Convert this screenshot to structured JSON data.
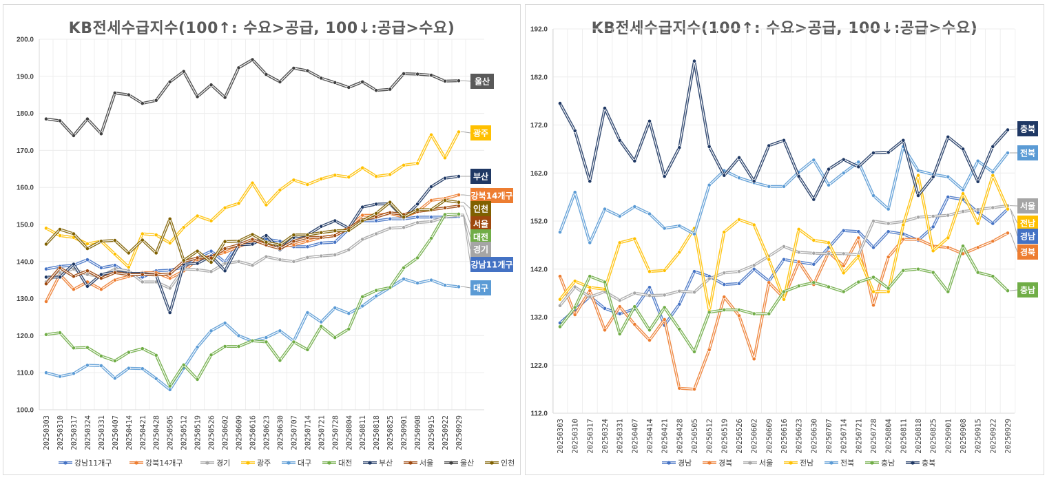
{
  "chart_data": [
    {
      "type": "line",
      "title": "KB전세수급지수(100↑: 수요>공급, 100↓:공급>수요)",
      "xlabel": "",
      "ylabel": "",
      "ylim": [
        100,
        200
      ],
      "yticks": [
        "100.0",
        "110.0",
        "120.0",
        "130.0",
        "140.0",
        "150.0",
        "160.0",
        "170.0",
        "180.0",
        "190.0",
        "200.0"
      ],
      "grid": true,
      "legend": "bottom",
      "x": [
        "20250303",
        "20250310",
        "20250317",
        "20250324",
        "20250331",
        "20250407",
        "20250414",
        "20250421",
        "20250428",
        "20250505",
        "20250512",
        "20250519",
        "20250526",
        "20250602",
        "20250609",
        "20250616",
        "20250623",
        "20250630",
        "20250707",
        "20250714",
        "20250721",
        "20250728",
        "20250804",
        "20250811",
        "20250818",
        "20250825",
        "20250901",
        "20250908",
        "20250915",
        "20250922",
        "20250929"
      ],
      "series": [
        {
          "name": "강남11개구",
          "color": "#4472C4",
          "values": [
            138,
            138.7,
            139,
            140.5,
            138.3,
            139,
            136.5,
            135.8,
            137.5,
            137.7,
            138.5,
            141,
            142.8,
            139.8,
            145,
            145,
            146,
            145.5,
            144,
            144,
            145,
            145.2,
            148.8,
            151,
            151,
            151.5,
            151.5,
            152,
            152,
            152,
            152.2
          ]
        },
        {
          "name": "강북14개구",
          "color": "#ED7D31",
          "values": [
            129.2,
            136.5,
            132.5,
            134.5,
            132.5,
            135,
            136,
            137,
            137,
            135.5,
            137.5,
            140.5,
            141.5,
            142.5,
            144,
            145.5,
            145,
            144,
            144.5,
            145.5,
            146.5,
            147,
            149.2,
            152.5,
            152.5,
            153,
            152,
            153.5,
            156.5,
            157,
            158
          ]
        },
        {
          "name": "경기",
          "color": "#A5A5A5",
          "values": [
            134.5,
            137,
            138,
            136.5,
            136,
            138,
            137.5,
            134.5,
            134.5,
            132.8,
            138,
            137.8,
            137.3,
            139.5,
            140,
            139,
            141.3,
            140.5,
            140,
            141.1,
            141.5,
            141.8,
            143.2,
            146,
            147.5,
            149,
            149.2,
            150.5,
            150.8,
            152,
            152.5
          ]
        },
        {
          "name": "광주",
          "color": "#FFC000",
          "values": [
            149,
            147,
            146.5,
            144.8,
            145.5,
            142,
            138.5,
            147.5,
            147.2,
            145,
            149.2,
            152.3,
            151,
            154.5,
            155.7,
            161.2,
            155.3,
            159.3,
            162,
            160.8,
            162.3,
            163.3,
            162.8,
            165.3,
            163,
            163.5,
            166,
            166.5,
            174.2,
            168,
            175
          ]
        },
        {
          "name": "대구",
          "color": "#5B9BD5",
          "values": [
            110,
            109,
            109.8,
            112,
            111.9,
            108.5,
            111.2,
            111.1,
            108.4,
            105.4,
            111.2,
            116.9,
            121.3,
            123.4,
            120,
            118.5,
            119.5,
            121.3,
            118.5,
            126.2,
            123.7,
            127.5,
            126,
            128,
            130.7,
            133,
            135.3,
            134.2,
            135,
            133.6,
            133.2
          ]
        },
        {
          "name": "대전",
          "color": "#70AD47",
          "values": [
            120.3,
            120.8,
            116.7,
            116.8,
            114.5,
            113.2,
            115.5,
            116.5,
            114.7,
            106.4,
            112.1,
            108.2,
            114.8,
            117.1,
            117.1,
            118.6,
            118.3,
            113.3,
            118.3,
            116.2,
            122.5,
            119.5,
            121.8,
            130.5,
            132.2,
            133,
            138.3,
            141,
            146.3,
            152.7,
            152.8
          ]
        },
        {
          "name": "부산",
          "color": "#1F3864",
          "values": [
            135.8,
            135.8,
            139.3,
            133.3,
            136.5,
            137.2,
            136.8,
            136.8,
            136.4,
            126.2,
            139.3,
            139.5,
            141.5,
            137.5,
            144.5,
            144.7,
            147,
            143.2,
            146.5,
            147.2,
            149.5,
            151,
            149,
            154.7,
            155.5,
            155.6,
            151.8,
            155.5,
            160.2,
            162.5,
            163
          ]
        },
        {
          "name": "서울",
          "color": "#9E480E",
          "values": [
            134,
            138.3,
            136,
            137.5,
            135.5,
            137,
            136.5,
            136.5,
            136.4,
            136.7,
            140,
            141,
            141,
            143.5,
            144.5,
            146,
            144.5,
            143.5,
            145.5,
            146.5,
            146.5,
            147,
            149,
            151.3,
            152,
            153.2,
            152.7,
            153.5,
            154,
            154.5,
            155
          ]
        },
        {
          "name": "울산",
          "color": "#404040",
          "values": [
            178.5,
            178,
            174,
            178.5,
            174.5,
            185.5,
            185,
            182.7,
            183.5,
            188.5,
            191.3,
            184.5,
            187.7,
            184.3,
            192.3,
            194.5,
            190.5,
            188.5,
            192.2,
            191.5,
            189.5,
            188.3,
            187,
            188.5,
            186.2,
            186.5,
            190.7,
            190.6,
            190.3,
            188.7,
            188.8
          ]
        },
        {
          "name": "인천",
          "color": "#7F6000",
          "values": [
            144.7,
            148.7,
            147.5,
            143.5,
            145.5,
            145.7,
            142.3,
            145.8,
            142.3,
            151.5,
            140.3,
            142.8,
            139.8,
            145.4,
            145.5,
            147.3,
            145.2,
            144.5,
            147.2,
            147.2,
            147.8,
            148.3,
            148.4,
            151,
            153,
            156,
            152,
            154,
            154,
            156.5,
            156
          ]
        }
      ],
      "end_labels": [
        {
          "name": "울산",
          "bg": "#595959"
        },
        {
          "name": "광주",
          "bg": "#FFC000"
        },
        {
          "name": "부산",
          "bg": "#1F3864"
        },
        {
          "name": "강북14개구",
          "bg": "#ED7D31"
        },
        {
          "name": "인천",
          "bg": "#7F6000"
        },
        {
          "name": "서울",
          "bg": "#9E480E"
        },
        {
          "name": "대전",
          "bg": "#70AD47"
        },
        {
          "name": "경기",
          "bg": "#A5A5A5"
        },
        {
          "name": "강남11개구",
          "bg": "#4472C4"
        },
        {
          "name": "대구",
          "bg": "#5B9BD5"
        }
      ]
    },
    {
      "type": "line",
      "title": "KB전세수급지수(100↑: 수요>공급, 100↓:공급>수요)",
      "xlabel": "",
      "ylabel": "",
      "ylim": [
        112,
        192
      ],
      "yticks": [
        "112.0",
        "122.0",
        "132.0",
        "142.0",
        "152.0",
        "162.0",
        "172.0",
        "182.0",
        "192.0"
      ],
      "grid": true,
      "legend": "bottom",
      "x": [
        "20250303",
        "20250310",
        "20250317",
        "20250324",
        "20250331",
        "20250407",
        "20250414",
        "20250421",
        "20250428",
        "20250505",
        "20250512",
        "20250519",
        "20250526",
        "20250602",
        "20250609",
        "20250616",
        "20250623",
        "20250630",
        "20250707",
        "20250714",
        "20250721",
        "20250728",
        "20250804",
        "20250811",
        "20250818",
        "20250825",
        "20250901",
        "20250908",
        "20250915",
        "20250922",
        "20250929"
      ],
      "series": [
        {
          "name": "경남",
          "color": "#4472C4",
          "values": [
            130.8,
            133.5,
            136.3,
            133.8,
            132.7,
            133.7,
            138.2,
            130.3,
            134.7,
            141.5,
            140.5,
            138.8,
            139,
            142,
            139.5,
            144,
            143.5,
            143,
            146.5,
            150,
            149.8,
            146.5,
            149.8,
            149.3,
            148,
            150.8,
            157,
            156.5,
            153.8,
            151.5,
            154.5
          ]
        },
        {
          "name": "경북",
          "color": "#ED7D31",
          "values": [
            140.5,
            132.5,
            137.5,
            129.3,
            134.2,
            130.5,
            127.2,
            131.5,
            117.2,
            117,
            125.2,
            136.2,
            132.3,
            123.3,
            139.2,
            136,
            143.5,
            138.8,
            145.5,
            142.7,
            148.5,
            134.5,
            144.5,
            148.2,
            148.2,
            146.8,
            146.5,
            145.2,
            146.5,
            147.8,
            149.5
          ]
        },
        {
          "name": "서울",
          "color": "#A5A5A5",
          "values": [
            134.4,
            138.3,
            136.2,
            137.3,
            135.5,
            137,
            136.5,
            136.6,
            137.4,
            137.2,
            140,
            141.2,
            141.5,
            142.8,
            144.7,
            146.7,
            145.5,
            145.3,
            145.2,
            145.2,
            145,
            152,
            151.5,
            151.9,
            152.8,
            153,
            153.2,
            154,
            154.4,
            154.8,
            155.2
          ]
        },
        {
          "name": "전남",
          "color": "#FFC000",
          "values": [
            135.7,
            139.5,
            138.2,
            137.8,
            147.5,
            148.3,
            141.5,
            141.7,
            145.5,
            150.5,
            133.3,
            149.7,
            152.3,
            151.2,
            144,
            135.7,
            150.3,
            148,
            147.5,
            141.2,
            144.7,
            137.3,
            137.3,
            151.2,
            161.5,
            145.8,
            148.5,
            157.7,
            151.5,
            161.5,
            154.5
          ]
        },
        {
          "name": "전북",
          "color": "#5B9BD5",
          "values": [
            149.7,
            158,
            147.5,
            154.5,
            153,
            155,
            153.5,
            150.5,
            151,
            149.3,
            159.5,
            162.5,
            161,
            160,
            159.2,
            159.2,
            162.2,
            164.7,
            159.5,
            162,
            164.3,
            157.3,
            154.5,
            167.5,
            162.5,
            161.7,
            161.2,
            158.5,
            164.5,
            162.2,
            166.2
          ]
        },
        {
          "name": "충남",
          "color": "#70AD47",
          "values": [
            130,
            134,
            140.5,
            139.3,
            128.5,
            134.2,
            129.3,
            134,
            129.5,
            124.8,
            133,
            133.5,
            133.5,
            132.7,
            132.7,
            137.3,
            138.5,
            139.2,
            138.3,
            137.3,
            139.3,
            140.3,
            138,
            141.7,
            142,
            141.3,
            137.3,
            146.8,
            141.3,
            140.5,
            137.5
          ]
        },
        {
          "name": "충북",
          "color": "#1F3864",
          "values": [
            176.5,
            170.8,
            160.3,
            175.5,
            168.8,
            164.5,
            172.8,
            161.3,
            167.3,
            185.3,
            167.5,
            161.5,
            165.2,
            160.3,
            167.7,
            168.8,
            161.3,
            156.5,
            162.8,
            164.8,
            163.3,
            166.2,
            166.3,
            168.8,
            157.3,
            161.2,
            169.5,
            167,
            160.2,
            167.5,
            171
          ]
        }
      ],
      "end_labels": [
        {
          "name": "충북",
          "bg": "#1F3864"
        },
        {
          "name": "전북",
          "bg": "#5B9BD5"
        },
        {
          "name": "서울",
          "bg": "#A5A5A5"
        },
        {
          "name": "전남",
          "bg": "#FFC000"
        },
        {
          "name": "경남",
          "bg": "#4472C4"
        },
        {
          "name": "경북",
          "bg": "#ED7D31"
        },
        {
          "name": "충남",
          "bg": "#70AD47"
        }
      ]
    }
  ]
}
